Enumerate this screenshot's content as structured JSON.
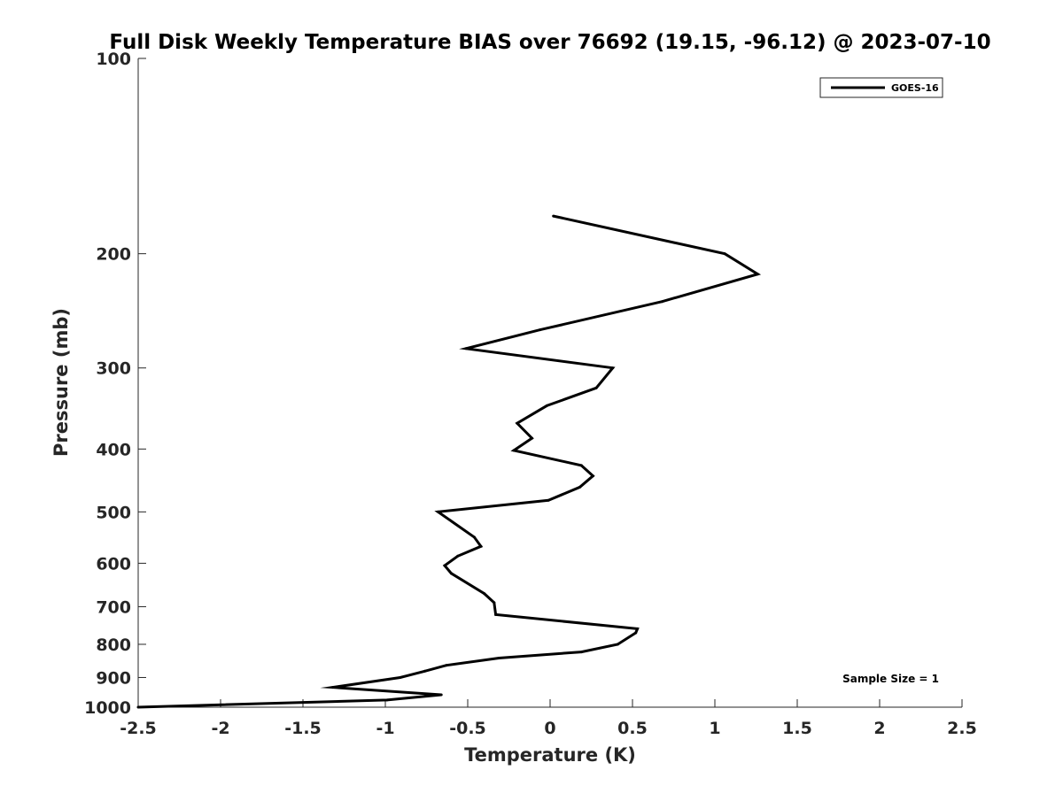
{
  "chart_data": {
    "type": "line",
    "title": "Full Disk Weekly Temperature BIAS over 76692 (19.15, -96.12) @ 2023-07-10",
    "xlabel": "Temperature (K)",
    "ylabel": "Pressure (mb)",
    "xlim": [
      -2.5,
      2.5
    ],
    "ylim": [
      100,
      1000
    ],
    "y_scale": "log",
    "y_reversed": true,
    "x_ticks": [
      -2.5,
      -2,
      -1.5,
      -1,
      -0.5,
      0,
      0.5,
      1,
      1.5,
      2,
      2.5
    ],
    "x_tick_labels": [
      "-2.5",
      "-2",
      "-1.5",
      "-1",
      "-0.5",
      "0",
      "0.5",
      "1",
      "1.5",
      "2",
      "2.5"
    ],
    "y_ticks": [
      100,
      200,
      300,
      400,
      500,
      600,
      700,
      800,
      900,
      1000
    ],
    "y_tick_labels": [
      "100",
      "200",
      "300",
      "400",
      "500",
      "600",
      "700",
      "800",
      "900",
      "1000"
    ],
    "grid": false,
    "legend_position": "top-right",
    "annotation": "Sample Size = 1",
    "series": [
      {
        "name": "GOES-16",
        "color": "#000000",
        "points": [
          {
            "x": 0.02,
            "y": 175
          },
          {
            "x": 1.06,
            "y": 200
          },
          {
            "x": 1.26,
            "y": 215
          },
          {
            "x": 0.68,
            "y": 237
          },
          {
            "x": -0.06,
            "y": 262
          },
          {
            "x": -0.51,
            "y": 280
          },
          {
            "x": 0.38,
            "y": 300
          },
          {
            "x": 0.28,
            "y": 322
          },
          {
            "x": -0.02,
            "y": 343
          },
          {
            "x": -0.2,
            "y": 365
          },
          {
            "x": -0.11,
            "y": 385
          },
          {
            "x": -0.22,
            "y": 402
          },
          {
            "x": 0.19,
            "y": 424
          },
          {
            "x": 0.26,
            "y": 440
          },
          {
            "x": 0.18,
            "y": 458
          },
          {
            "x": -0.01,
            "y": 480
          },
          {
            "x": -0.68,
            "y": 500
          },
          {
            "x": -0.46,
            "y": 547
          },
          {
            "x": -0.42,
            "y": 565
          },
          {
            "x": -0.56,
            "y": 585
          },
          {
            "x": -0.64,
            "y": 605
          },
          {
            "x": -0.6,
            "y": 622
          },
          {
            "x": -0.4,
            "y": 668
          },
          {
            "x": -0.34,
            "y": 690
          },
          {
            "x": -0.33,
            "y": 720
          },
          {
            "x": 0.53,
            "y": 757
          },
          {
            "x": 0.52,
            "y": 768
          },
          {
            "x": 0.41,
            "y": 800
          },
          {
            "x": 0.19,
            "y": 822
          },
          {
            "x": -0.31,
            "y": 840
          },
          {
            "x": -0.63,
            "y": 862
          },
          {
            "x": -0.76,
            "y": 880
          },
          {
            "x": -0.91,
            "y": 900
          },
          {
            "x": -1.32,
            "y": 932
          },
          {
            "x": -0.66,
            "y": 957
          },
          {
            "x": -0.99,
            "y": 975
          },
          {
            "x": -2.5,
            "y": 1000
          }
        ]
      }
    ]
  }
}
